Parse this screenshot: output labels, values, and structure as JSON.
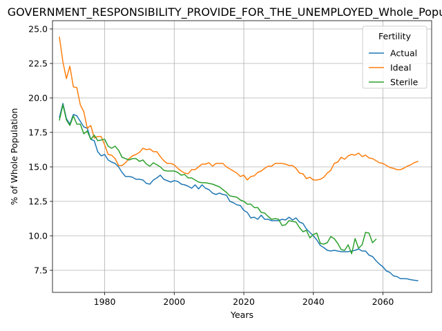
{
  "chart_data": {
    "type": "line",
    "title": "GOVERNMENT_RESPONSIBILITY_PROVIDE_FOR_THE_UNEMPLOYED_Whole_Population",
    "xlabel": "Years",
    "ylabel": "% of Whole Population",
    "xlim": [
      1965,
      2074
    ],
    "ylim": [
      5.9,
      25.6
    ],
    "xticks": [
      1980,
      2000,
      2020,
      2040,
      2060
    ],
    "yticks": [
      7.5,
      10.0,
      12.5,
      15.0,
      17.5,
      20.0,
      22.5,
      25.0
    ],
    "xtick_labels": [
      "1980",
      "2000",
      "2020",
      "2040",
      "2060"
    ],
    "ytick_labels": [
      "7.5",
      "10.0",
      "12.5",
      "15.0",
      "17.5",
      "20.0",
      "22.5",
      "25.0"
    ],
    "grid": true,
    "legend": {
      "title": "Fertility",
      "placement": "top-right"
    },
    "series": [
      {
        "name": "Actual",
        "color": "#1f77b4",
        "x": [
          1967,
          1968,
          1969,
          1970,
          1971,
          1972,
          1973,
          1974,
          1975,
          1976,
          1977,
          1978,
          1979,
          1980,
          1981,
          1982,
          1983,
          1984,
          1985,
          1986,
          1987,
          1988,
          1989,
          1990,
          1991,
          1992,
          1993,
          1994,
          1995,
          1996,
          1997,
          1998,
          1999,
          2000,
          2001,
          2002,
          2003,
          2004,
          2005,
          2006,
          2007,
          2008,
          2009,
          2010,
          2011,
          2012,
          2013,
          2014,
          2015,
          2016,
          2017,
          2018,
          2019,
          2020,
          2021,
          2022,
          2023,
          2024,
          2025,
          2026,
          2027,
          2028,
          2029,
          2030,
          2031,
          2032,
          2033,
          2034,
          2035,
          2036,
          2037,
          2038,
          2039,
          2040,
          2041,
          2042,
          2043,
          2044,
          2045,
          2046,
          2047,
          2048,
          2049,
          2050,
          2051,
          2052,
          2053,
          2054,
          2055,
          2056,
          2057,
          2058,
          2059,
          2060,
          2061,
          2062,
          2063,
          2064,
          2065,
          2066,
          2067,
          2068,
          2069,
          2070
        ],
        "values": [
          18.6,
          19.6,
          18.5,
          18.1,
          18.8,
          18.7,
          18.3,
          17.9,
          17.8,
          17.0,
          16.9,
          16.1,
          15.8,
          15.9,
          15.5,
          15.35,
          15.25,
          15.0,
          14.6,
          14.3,
          14.3,
          14.25,
          14.1,
          14.1,
          14.05,
          13.8,
          13.75,
          14.05,
          14.2,
          14.4,
          14.1,
          14.0,
          13.9,
          14.0,
          13.95,
          13.75,
          13.7,
          13.6,
          13.45,
          13.7,
          13.4,
          13.7,
          13.45,
          13.35,
          13.1,
          13.0,
          13.1,
          13.0,
          12.95,
          12.5,
          12.4,
          12.25,
          12.2,
          11.85,
          11.7,
          11.3,
          11.35,
          11.2,
          11.5,
          11.2,
          11.2,
          11.1,
          11.1,
          11.1,
          11.2,
          11.15,
          11.35,
          11.15,
          11.3,
          11.0,
          10.9,
          10.5,
          10.25,
          10.0,
          9.7,
          9.3,
          9.15,
          8.95,
          8.9,
          8.95,
          8.9,
          8.85,
          8.85,
          8.85,
          8.9,
          8.95,
          9.05,
          8.9,
          8.9,
          8.6,
          8.5,
          8.2,
          7.95,
          7.75,
          7.45,
          7.35,
          7.1,
          7.05,
          6.9,
          6.9,
          6.88,
          6.82,
          6.78,
          6.75
        ]
      },
      {
        "name": "Ideal",
        "color": "#ff7f0e",
        "x": [
          1967,
          1968,
          1969,
          1970,
          1971,
          1972,
          1973,
          1974,
          1975,
          1976,
          1977,
          1978,
          1979,
          1980,
          1981,
          1982,
          1983,
          1984,
          1985,
          1986,
          1987,
          1988,
          1989,
          1990,
          1991,
          1992,
          1993,
          1994,
          1995,
          1996,
          1997,
          1998,
          1999,
          2000,
          2001,
          2002,
          2003,
          2004,
          2005,
          2006,
          2007,
          2008,
          2009,
          2010,
          2011,
          2012,
          2013,
          2014,
          2015,
          2016,
          2017,
          2018,
          2019,
          2020,
          2021,
          2022,
          2023,
          2024,
          2025,
          2026,
          2027,
          2028,
          2029,
          2030,
          2031,
          2032,
          2033,
          2034,
          2035,
          2036,
          2037,
          2038,
          2039,
          2040,
          2041,
          2042,
          2043,
          2044,
          2045,
          2046,
          2047,
          2048,
          2049,
          2050,
          2051,
          2052,
          2053,
          2054,
          2055,
          2056,
          2057,
          2058,
          2059,
          2060,
          2061,
          2062,
          2063,
          2064,
          2065,
          2066,
          2067,
          2068,
          2069,
          2070
        ],
        "values": [
          24.4,
          22.6,
          21.4,
          22.3,
          20.8,
          20.75,
          19.5,
          19.0,
          17.8,
          18.0,
          17.1,
          17.2,
          17.2,
          16.6,
          15.9,
          15.85,
          15.6,
          15.1,
          15.1,
          15.3,
          15.6,
          15.8,
          15.9,
          16.05,
          16.35,
          16.25,
          16.3,
          16.1,
          16.1,
          15.75,
          15.45,
          15.25,
          15.25,
          15.15,
          14.9,
          14.7,
          14.55,
          14.5,
          14.8,
          14.8,
          15.0,
          15.2,
          15.2,
          15.3,
          15.05,
          15.25,
          15.25,
          15.25,
          15.0,
          14.85,
          14.7,
          14.55,
          14.3,
          14.4,
          14.05,
          14.3,
          14.35,
          14.6,
          14.7,
          14.9,
          15.05,
          15.05,
          15.25,
          15.25,
          15.25,
          15.2,
          15.1,
          15.1,
          14.9,
          14.55,
          14.5,
          14.15,
          14.25,
          14.05,
          14.05,
          14.1,
          14.25,
          14.55,
          14.75,
          15.25,
          15.35,
          15.7,
          15.55,
          15.8,
          15.9,
          15.85,
          16.0,
          15.75,
          15.85,
          15.65,
          15.6,
          15.45,
          15.3,
          15.25,
          15.1,
          14.95,
          14.9,
          14.8,
          14.8,
          14.9,
          15.05,
          15.15,
          15.3,
          15.4
        ]
      },
      {
        "name": "Sterile",
        "color": "#2ca02c",
        "x": [
          1967,
          1968,
          1969,
          1970,
          1971,
          1972,
          1973,
          1974,
          1975,
          1976,
          1977,
          1978,
          1979,
          1980,
          1981,
          1982,
          1983,
          1984,
          1985,
          1986,
          1987,
          1988,
          1989,
          1990,
          1991,
          1992,
          1993,
          1994,
          1995,
          1996,
          1997,
          1998,
          1999,
          2000,
          2001,
          2002,
          2003,
          2004,
          2005,
          2006,
          2007,
          2008,
          2009,
          2010,
          2011,
          2012,
          2013,
          2014,
          2015,
          2016,
          2017,
          2018,
          2019,
          2020,
          2021,
          2022,
          2023,
          2024,
          2025,
          2026,
          2027,
          2028,
          2029,
          2030,
          2031,
          2032,
          2033,
          2034,
          2035,
          2036,
          2037,
          2038,
          2039,
          2040,
          2041,
          2042,
          2043,
          2044,
          2045,
          2046,
          2047,
          2048,
          2049,
          2050,
          2051,
          2052,
          2053,
          2054,
          2055,
          2056,
          2057,
          2058
        ],
        "values": [
          18.4,
          19.5,
          18.4,
          18.0,
          18.7,
          18.1,
          18.1,
          17.4,
          17.6,
          17.0,
          17.3,
          16.9,
          16.95,
          17.0,
          16.5,
          16.35,
          16.5,
          16.2,
          15.7,
          15.6,
          15.5,
          15.6,
          15.6,
          15.4,
          15.5,
          15.2,
          15.05,
          15.3,
          15.15,
          15.0,
          14.75,
          14.7,
          14.7,
          14.7,
          14.6,
          14.4,
          14.45,
          14.2,
          14.2,
          14.05,
          13.9,
          13.85,
          13.85,
          13.8,
          13.75,
          13.65,
          13.55,
          13.35,
          13.15,
          12.9,
          12.85,
          12.8,
          12.6,
          12.5,
          12.3,
          12.3,
          12.05,
          12.05,
          11.7,
          11.65,
          11.4,
          11.2,
          11.25,
          11.2,
          10.75,
          10.8,
          11.1,
          11.05,
          11.0,
          10.6,
          10.3,
          10.4,
          9.85,
          10.1,
          10.2,
          9.45,
          9.4,
          9.5,
          9.95,
          9.8,
          9.45,
          9.0,
          8.95,
          9.35,
          8.7,
          9.8,
          9.1,
          9.35,
          10.25,
          10.2,
          9.5,
          9.75
        ]
      }
    ]
  }
}
